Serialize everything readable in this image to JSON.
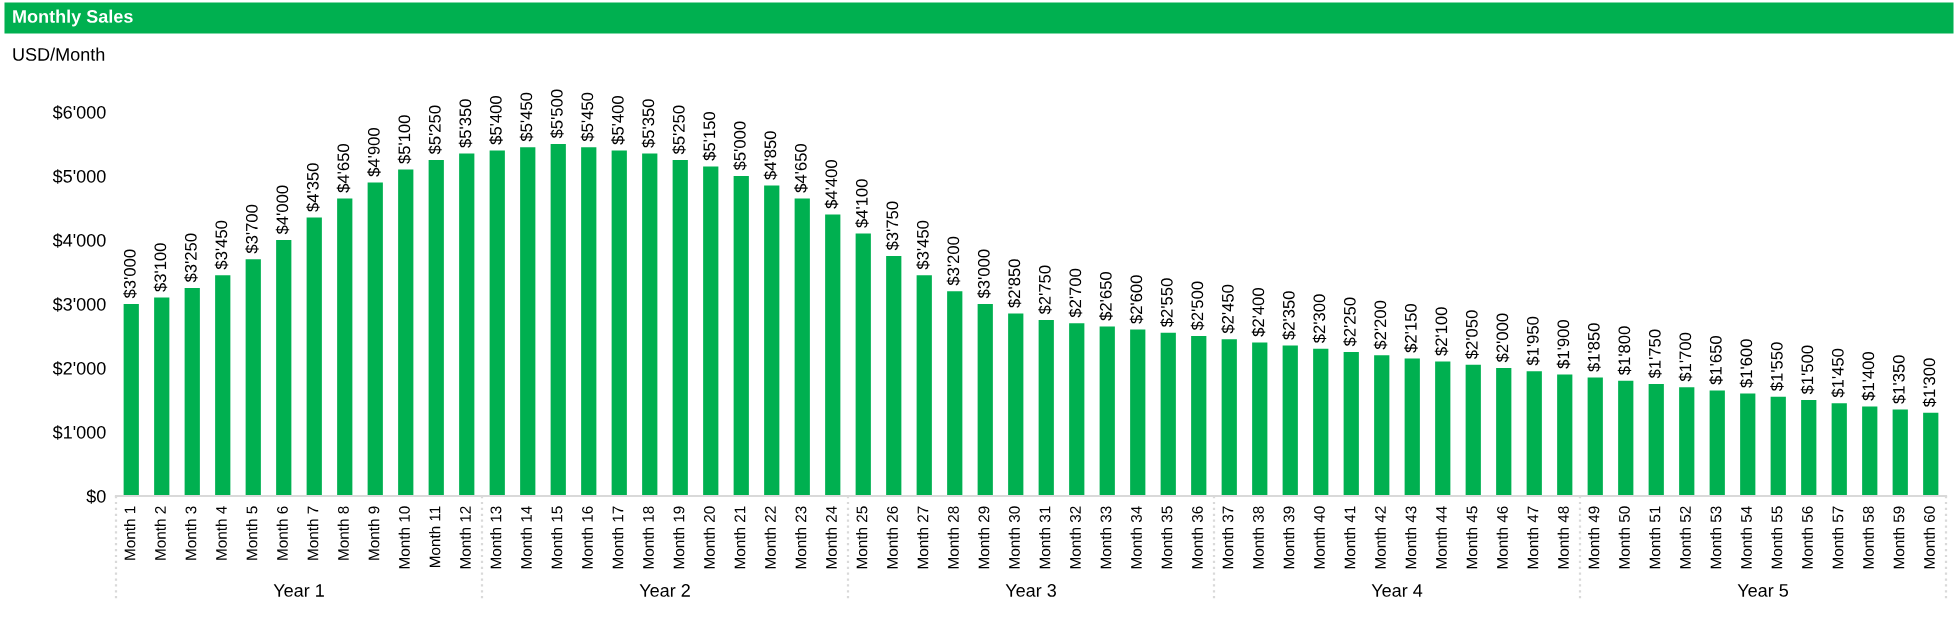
{
  "chart_data": {
    "type": "bar",
    "title": "Monthly Sales",
    "subtitle": "USD/Month",
    "categories": [
      "Month 1",
      "Month 2",
      "Month 3",
      "Month 4",
      "Month 5",
      "Month 6",
      "Month 7",
      "Month 8",
      "Month 9",
      "Month 10",
      "Month 11",
      "Month 12",
      "Month 13",
      "Month 14",
      "Month 15",
      "Month 16",
      "Month 17",
      "Month 18",
      "Month 19",
      "Month 20",
      "Month 21",
      "Month 22",
      "Month 23",
      "Month 24",
      "Month 25",
      "Month 26",
      "Month 27",
      "Month 28",
      "Month 29",
      "Month 30",
      "Month 31",
      "Month 32",
      "Month 33",
      "Month 34",
      "Month 35",
      "Month 36",
      "Month 37",
      "Month 38",
      "Month 39",
      "Month 40",
      "Month 41",
      "Month 42",
      "Month 43",
      "Month 44",
      "Month 45",
      "Month 46",
      "Month 47",
      "Month 48",
      "Month 49",
      "Month 50",
      "Month 51",
      "Month 52",
      "Month 53",
      "Month 54",
      "Month 55",
      "Month 56",
      "Month 57",
      "Month 58",
      "Month 59",
      "Month 60"
    ],
    "values": [
      3000,
      3100,
      3250,
      3450,
      3700,
      4000,
      4350,
      4650,
      4900,
      5100,
      5250,
      5350,
      5400,
      5450,
      5500,
      5450,
      5400,
      5350,
      5250,
      5150,
      5000,
      4850,
      4650,
      4400,
      4100,
      3750,
      3450,
      3200,
      3000,
      2850,
      2750,
      2700,
      2650,
      2600,
      2550,
      2500,
      2450,
      2400,
      2350,
      2300,
      2250,
      2200,
      2150,
      2100,
      2050,
      2000,
      1950,
      1900,
      1850,
      1800,
      1750,
      1700,
      1650,
      1600,
      1550,
      1500,
      1450,
      1400,
      1350,
      1300
    ],
    "value_labels": [
      "$3'000",
      "$3'100",
      "$3'250",
      "$3'450",
      "$3'700",
      "$4'000",
      "$4'350",
      "$4'650",
      "$4'900",
      "$5'100",
      "$5'250",
      "$5'350",
      "$5'400",
      "$5'450",
      "$5'500",
      "$5'450",
      "$5'400",
      "$5'350",
      "$5'250",
      "$5'150",
      "$5'000",
      "$4'850",
      "$4'650",
      "$4'400",
      "$4'100",
      "$3'750",
      "$3'450",
      "$3'200",
      "$3'000",
      "$2'850",
      "$2'750",
      "$2'700",
      "$2'650",
      "$2'600",
      "$2'550",
      "$2'500",
      "$2'450",
      "$2'400",
      "$2'350",
      "$2'300",
      "$2'250",
      "$2'200",
      "$2'150",
      "$2'100",
      "$2'050",
      "$2'000",
      "$1'950",
      "$1'900",
      "$1'850",
      "$1'800",
      "$1'750",
      "$1'700",
      "$1'650",
      "$1'600",
      "$1'550",
      "$1'500",
      "$1'450",
      "$1'400",
      "$1'350",
      "$1'300"
    ],
    "color": "#00b050",
    "ylim": [
      0,
      6000
    ],
    "yticks": [
      {
        "value": 0,
        "label": "$0"
      },
      {
        "value": 1000,
        "label": "$1'000"
      },
      {
        "value": 2000,
        "label": "$2'000"
      },
      {
        "value": 3000,
        "label": "$3'000"
      },
      {
        "value": 4000,
        "label": "$4'000"
      },
      {
        "value": 5000,
        "label": "$5'000"
      },
      {
        "value": 6000,
        "label": "$6'000"
      }
    ],
    "annotations": [
      "Year 1",
      "Year 2",
      "Year 3",
      "Year 4",
      "Year 5"
    ],
    "grid": false
  }
}
